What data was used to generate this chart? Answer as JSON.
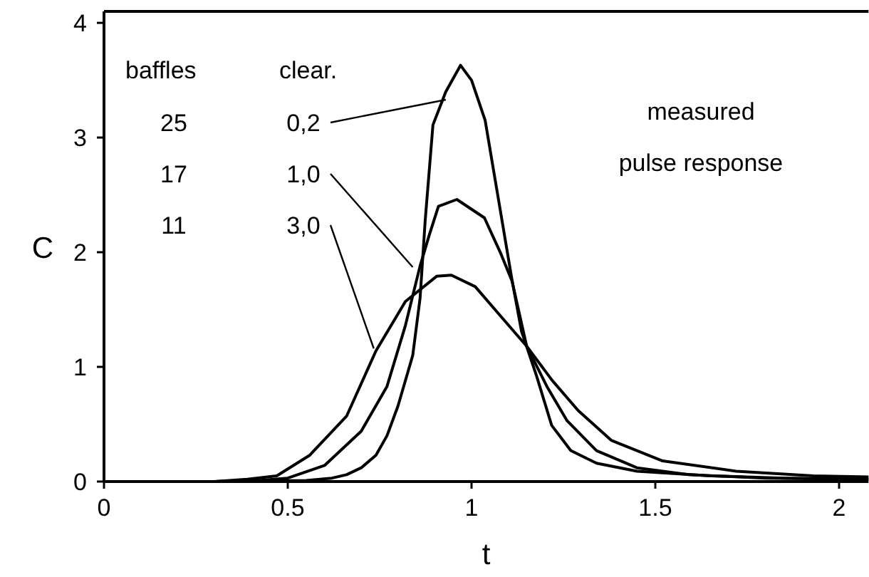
{
  "chart_data": {
    "type": "line",
    "xlabel": "t",
    "ylabel": "C",
    "xlim": [
      0,
      2.08
    ],
    "ylim": [
      0,
      4.1
    ],
    "xticks": [
      0,
      0.5,
      1,
      1.5,
      2
    ],
    "yticks": [
      0,
      1,
      2,
      3,
      4
    ],
    "grid": false,
    "marker": "none",
    "line_style": "solid",
    "series": [
      {
        "color": "#000000",
        "x": [
          0,
          0.3,
          0.55,
          0.62,
          0.66,
          0.7,
          0.74,
          0.77,
          0.8,
          0.84,
          0.86,
          0.874,
          0.895,
          0.93,
          0.97,
          1.0,
          1.037,
          1.078,
          1.11,
          1.136,
          1.177,
          1.218,
          1.27,
          1.34,
          1.45,
          1.65,
          1.85,
          2.08
        ],
        "values": [
          0,
          0,
          0.01,
          0.03,
          0.06,
          0.12,
          0.23,
          0.4,
          0.66,
          1.1,
          1.6,
          2.28,
          3.11,
          3.4,
          3.63,
          3.5,
          3.15,
          2.37,
          1.76,
          1.31,
          0.92,
          0.49,
          0.27,
          0.16,
          0.09,
          0.05,
          0.03,
          0.02
        ]
      },
      {
        "color": "#000000",
        "x": [
          0,
          0.3,
          0.42,
          0.5,
          0.6,
          0.7,
          0.77,
          0.82,
          0.86,
          0.885,
          0.91,
          0.96,
          1.035,
          1.078,
          1.11,
          1.15,
          1.205,
          1.26,
          1.34,
          1.45,
          1.59,
          1.8,
          2.08
        ],
        "values": [
          0,
          0,
          0.01,
          0.03,
          0.14,
          0.44,
          0.83,
          1.36,
          1.88,
          2.15,
          2.4,
          2.46,
          2.3,
          2.0,
          1.75,
          1.18,
          0.83,
          0.53,
          0.27,
          0.12,
          0.06,
          0.03,
          0.02
        ]
      },
      {
        "color": "#000000",
        "x": [
          0,
          0.3,
          0.39,
          0.47,
          0.56,
          0.66,
          0.74,
          0.82,
          0.905,
          0.945,
          1.01,
          1.08,
          1.15,
          1.22,
          1.29,
          1.38,
          1.52,
          1.72,
          1.93,
          2.08
        ],
        "values": [
          0,
          0,
          0.02,
          0.05,
          0.23,
          0.57,
          1.14,
          1.57,
          1.79,
          1.8,
          1.7,
          1.44,
          1.18,
          0.88,
          0.62,
          0.36,
          0.18,
          0.09,
          0.05,
          0.04
        ]
      }
    ],
    "annotations": [
      "baffles",
      "clear.",
      "25",
      {
        "text": "0,2",
        "x": 0.93,
        "y": 3.33
      },
      "17",
      {
        "text": "1,0",
        "x": 0.84,
        "y": 1.87
      },
      "11",
      {
        "text": "3,0",
        "x": 0.734,
        "y": 1.16
      },
      "measured",
      "pulse response"
    ]
  }
}
